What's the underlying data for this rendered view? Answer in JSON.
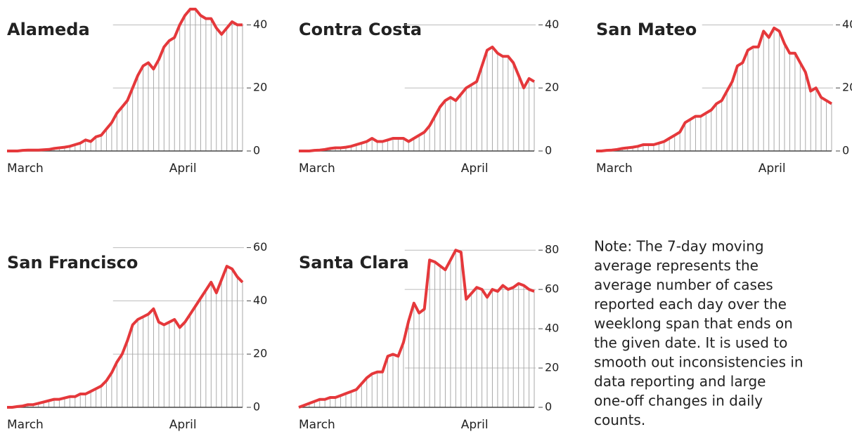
{
  "chart_data": [
    {
      "type": "line",
      "title": "Alameda",
      "categories": [
        "March",
        null,
        null,
        null,
        null,
        null,
        null,
        null,
        null,
        null,
        null,
        null,
        null,
        null,
        null,
        null,
        null,
        null,
        null,
        null,
        null,
        null,
        null,
        null,
        null,
        null,
        null,
        null,
        null,
        null,
        null,
        "April",
        null,
        null,
        null,
        null,
        null,
        null,
        null,
        null,
        null,
        null,
        null,
        null,
        null,
        null
      ],
      "series": [
        {
          "color": "#e5383b",
          "values": [
            0,
            0,
            0,
            0.2,
            0.3,
            0.3,
            0.3,
            0.4,
            0.5,
            0.8,
            1,
            1.2,
            1.5,
            2,
            2.5,
            3.5,
            3,
            4.5,
            5,
            7,
            9,
            12,
            14,
            16,
            20,
            24,
            27,
            28,
            26,
            29,
            33,
            35,
            36,
            40,
            43,
            45,
            45,
            43,
            42,
            42,
            39,
            37,
            39,
            41,
            40,
            40
          ]
        }
      ],
      "ylim": [
        0,
        45
      ],
      "yticks": [
        0,
        20,
        40
      ],
      "grid": true
    },
    {
      "type": "line",
      "title": "Contra Costa",
      "categories": [
        "March",
        null,
        null,
        null,
        null,
        null,
        null,
        null,
        null,
        null,
        null,
        null,
        null,
        null,
        null,
        null,
        null,
        null,
        null,
        null,
        null,
        null,
        null,
        null,
        null,
        null,
        null,
        null,
        null,
        null,
        null,
        "April",
        null,
        null,
        null,
        null,
        null,
        null,
        null,
        null,
        null,
        null,
        null,
        null,
        null,
        null
      ],
      "series": [
        {
          "color": "#e5383b",
          "values": [
            0,
            0,
            0,
            0.2,
            0.3,
            0.5,
            0.8,
            1,
            1,
            1.2,
            1.5,
            2,
            2.5,
            3,
            4,
            3,
            3,
            3.5,
            4,
            4,
            4,
            3,
            4,
            5,
            6,
            8,
            11,
            14,
            16,
            17,
            16,
            18,
            20,
            21,
            22,
            27,
            32,
            33,
            31,
            30,
            30,
            28,
            24,
            20,
            23,
            22
          ]
        }
      ],
      "ylim": [
        0,
        45
      ],
      "yticks": [
        0,
        20,
        40
      ],
      "grid": true
    },
    {
      "type": "line",
      "title": "San Mateo",
      "categories": [
        "March",
        null,
        null,
        null,
        null,
        null,
        null,
        null,
        null,
        null,
        null,
        null,
        null,
        null,
        null,
        null,
        null,
        null,
        null,
        null,
        null,
        null,
        null,
        null,
        null,
        null,
        null,
        null,
        null,
        null,
        null,
        "April",
        null,
        null,
        null,
        null,
        null,
        null,
        null,
        null,
        null,
        null,
        null,
        null,
        null,
        null
      ],
      "series": [
        {
          "color": "#e5383b",
          "values": [
            0,
            0,
            0.2,
            0.3,
            0.5,
            0.8,
            1,
            1.2,
            1.5,
            2,
            2,
            2,
            2.5,
            3,
            4,
            5,
            6,
            9,
            10,
            11,
            11,
            12,
            13,
            15,
            16,
            19,
            22,
            27,
            28,
            32,
            33,
            33,
            38,
            36,
            39,
            38,
            34,
            31,
            31,
            28,
            25,
            19,
            20,
            17,
            16,
            15
          ]
        }
      ],
      "ylim": [
        0,
        45
      ],
      "yticks": [
        0,
        20,
        40
      ],
      "grid": true
    },
    {
      "type": "line",
      "title": "San Francisco",
      "categories": [
        "March",
        null,
        null,
        null,
        null,
        null,
        null,
        null,
        null,
        null,
        null,
        null,
        null,
        null,
        null,
        null,
        null,
        null,
        null,
        null,
        null,
        null,
        null,
        null,
        null,
        null,
        null,
        null,
        null,
        null,
        null,
        "April",
        null,
        null,
        null,
        null,
        null,
        null,
        null,
        null,
        null,
        null,
        null,
        null,
        null,
        null
      ],
      "series": [
        {
          "color": "#e5383b",
          "values": [
            0,
            0,
            0.3,
            0.5,
            1,
            1,
            1.5,
            2,
            2.5,
            3,
            3,
            3.5,
            4,
            4,
            5,
            5,
            6,
            7,
            8,
            10,
            13,
            17,
            20,
            25,
            31,
            33,
            34,
            35,
            37,
            32,
            31,
            32,
            33,
            30,
            32,
            35,
            38,
            41,
            44,
            47,
            43,
            48,
            53,
            52,
            49,
            47
          ]
        }
      ],
      "ylim": [
        0,
        62
      ],
      "yticks": [
        0,
        20,
        40,
        60
      ],
      "grid": true
    },
    {
      "type": "line",
      "title": "Santa Clara",
      "categories": [
        "March",
        null,
        null,
        null,
        null,
        null,
        null,
        null,
        null,
        null,
        null,
        null,
        null,
        null,
        null,
        null,
        null,
        null,
        null,
        null,
        null,
        null,
        null,
        null,
        null,
        null,
        null,
        null,
        null,
        null,
        null,
        "April",
        null,
        null,
        null,
        null,
        null,
        null,
        null,
        null,
        null,
        null,
        null,
        null,
        null,
        null
      ],
      "series": [
        {
          "color": "#e5383b",
          "values": [
            0,
            1,
            2,
            3,
            4,
            4,
            5,
            5,
            6,
            7,
            8,
            9,
            12,
            15,
            17,
            18,
            18,
            26,
            27,
            26,
            33,
            44,
            53,
            48,
            50,
            75,
            74,
            72,
            70,
            75,
            80,
            79,
            55,
            58,
            61,
            60,
            56,
            60,
            59,
            62,
            60,
            61,
            63,
            62,
            60,
            59
          ]
        }
      ],
      "ylim": [
        0,
        84
      ],
      "yticks": [
        0,
        20,
        40,
        60,
        80
      ],
      "grid": true
    }
  ],
  "note": [
    "Note: The 7-day moving",
    "average represents the",
    "average number of cases",
    "reported each day over the",
    "weeklong span that ends on",
    "the given date. It is used to",
    "smooth out inconsistencies in",
    "data reporting and large",
    "one-off changes in daily",
    "counts."
  ]
}
